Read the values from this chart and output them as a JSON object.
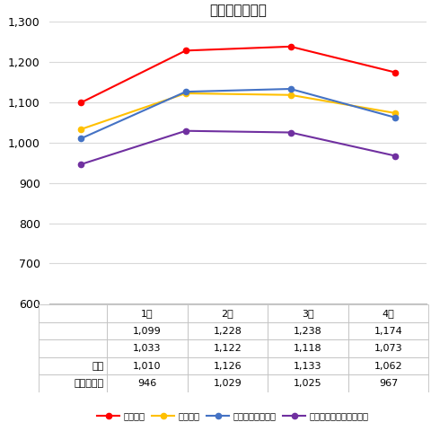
{
  "title": "認知件数の推移",
  "months": [
    "1月",
    "2月",
    "3月",
    "4月"
  ],
  "series": [
    {
      "label": "認知件数",
      "values": [
        1099,
        1228,
        1238,
        1174
      ],
      "color": "#FF0000",
      "marker": "o"
    },
    {
      "label": "うち既遂",
      "values": [
        1033,
        1122,
        1118,
        1073
      ],
      "color": "#FFC000",
      "marker": "o"
    },
    {
      "label": "うち振り込め詐欺",
      "values": [
        1010,
        1126,
        1133,
        1062
      ],
      "color": "#4472C4",
      "marker": "o"
    },
    {
      "label": "振り込め詐欺のうち既遂",
      "values": [
        946,
        1029,
        1025,
        967
      ],
      "color": "#7030A0",
      "marker": "o"
    }
  ],
  "row_labels": [
    "",
    "",
    "詐欺",
    "のうち既遂"
  ],
  "row_data": [
    [
      "1,099",
      "1,228",
      "1,238",
      "1,174"
    ],
    [
      "1,033",
      "1,122",
      "1,118",
      "1,073"
    ],
    [
      "1,010",
      "1,126",
      "1,133",
      "1,062"
    ],
    [
      "946",
      "1,029",
      "1,025",
      "967"
    ]
  ],
  "ylim": [
    600,
    1300
  ],
  "yticks": [
    600,
    700,
    800,
    900,
    1000,
    1100,
    1200,
    1300
  ],
  "background_color": "#FFFFFF",
  "grid_color": "#D9D9D9",
  "border_color": "#C0C0C0"
}
